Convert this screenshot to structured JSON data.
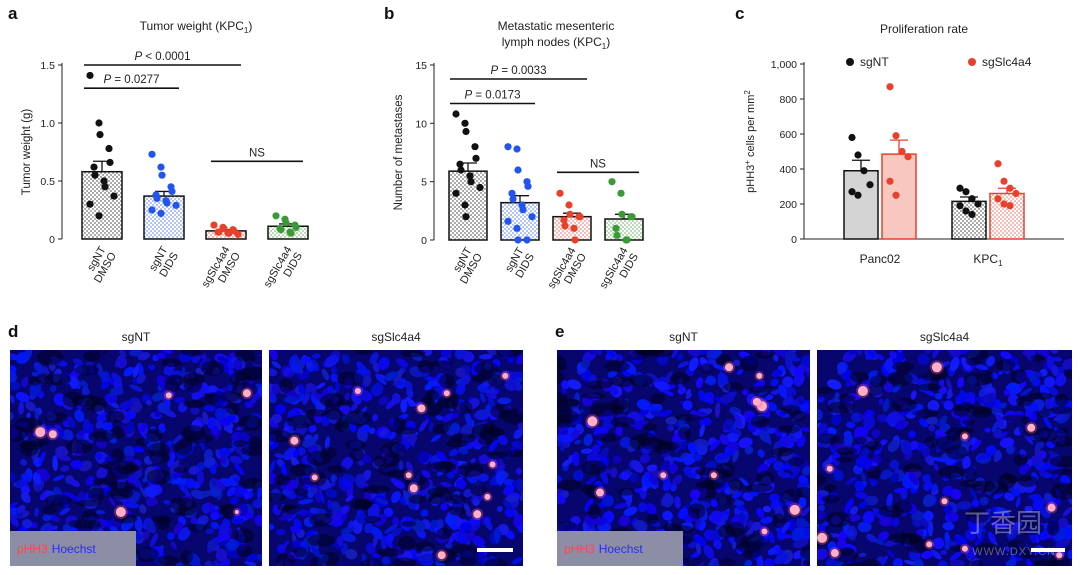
{
  "panels": {
    "a": "a",
    "b": "b",
    "c": "c",
    "d": "d",
    "e": "e"
  },
  "colors": {
    "black": "#111111",
    "blue": "#2255ee",
    "red": "#e8402a",
    "green": "#3a9a36",
    "gray": "#d4d4d4",
    "lightred": "#f8c8c0",
    "micro_bg": "#06066e",
    "pHH3": "#ff5a7a"
  },
  "chart_data": [
    {
      "id": "a",
      "type": "bar",
      "title_main": "Tumor weight (KPC",
      "title_sub": "1",
      "title_end": ")",
      "ylabel": "Tumor weight (g)",
      "ylim": [
        0,
        1.5
      ],
      "yticks": [
        0,
        0.5,
        1.0,
        1.5
      ],
      "ytick_labels": [
        "0",
        "0.5",
        "1.0",
        "1.5"
      ],
      "categories": [
        [
          "sgNT",
          "DMSO"
        ],
        [
          "sgNT",
          "DIDS"
        ],
        [
          "sgSlc4a4",
          "DMSO"
        ],
        [
          "sgSlc4a4",
          "DIDS"
        ]
      ],
      "bar_colors": [
        "#111111",
        "#2255ee",
        "#e8402a",
        "#3a9a36"
      ],
      "values": [
        0.58,
        0.37,
        0.07,
        0.11
      ],
      "errors": [
        0.09,
        0.04,
        0.01,
        0.02
      ],
      "points": [
        [
          1.41,
          1.0,
          0.9,
          0.78,
          0.66,
          0.62,
          0.55,
          0.5,
          0.45,
          0.37,
          0.3,
          0.2
        ],
        [
          0.73,
          0.62,
          0.55,
          0.45,
          0.41,
          0.38,
          0.35,
          0.33,
          0.31,
          0.29,
          0.25,
          0.22
        ],
        [
          0.12,
          0.1,
          0.09,
          0.08,
          0.07,
          0.06,
          0.06,
          0.05,
          0.05,
          0.04
        ],
        [
          0.2,
          0.17,
          0.14,
          0.12,
          0.1,
          0.09,
          0.08,
          0.06,
          0.05
        ]
      ],
      "brackets": [
        {
          "from": 0,
          "to": 2,
          "label_pre": "P",
          "label_post": " < 0.0001",
          "y": 1.5
        },
        {
          "from": 0,
          "to": 1,
          "label_pre": "P",
          "label_post": " = 0.0277",
          "y": 1.3
        },
        {
          "from": 2,
          "to": 3,
          "label_pre": "",
          "label_post": "NS",
          "y": 0.67
        }
      ]
    },
    {
      "id": "b",
      "type": "bar",
      "title_main": "Metastatic mesenteric",
      "title_line2": "lymph nodes (KPC",
      "title_sub": "1",
      "title_end": ")",
      "ylabel": "Number of metastases",
      "ylim": [
        0,
        15
      ],
      "yticks": [
        0,
        5,
        10,
        15
      ],
      "ytick_labels": [
        "0",
        "5",
        "10",
        "15"
      ],
      "categories": [
        [
          "sgNT",
          "DMSO"
        ],
        [
          "sgNT",
          "DIDS"
        ],
        [
          "sgSlc4a4",
          "DMSO"
        ],
        [
          "sgSlc4a4",
          "DIDS"
        ]
      ],
      "bar_colors": [
        "#111111",
        "#2255ee",
        "#e8402a",
        "#3a9a36"
      ],
      "values": [
        5.9,
        3.2,
        2.0,
        1.8
      ],
      "errors": [
        0.7,
        0.6,
        0.3,
        0.4
      ],
      "points": [
        [
          10.8,
          10.0,
          9.3,
          8.0,
          7.0,
          6.5,
          6.0,
          5.5,
          5.0,
          4.5,
          4.0,
          3.0,
          2.0
        ],
        [
          8.0,
          7.8,
          6.0,
          5.0,
          4.6,
          4.0,
          3.5,
          3.0,
          2.6,
          2.0,
          1.6,
          1.0,
          0.0,
          0.0
        ],
        [
          4.0,
          3.0,
          2.2,
          2.0,
          2.0,
          1.7,
          1.2,
          1.0,
          0.0
        ],
        [
          5.0,
          4.0,
          2.2,
          2.0,
          2.0,
          1.0,
          0.4,
          0.0,
          0.0
        ]
      ],
      "brackets": [
        {
          "from": 0,
          "to": 2,
          "label_pre": "P",
          "label_post": " = 0.0033",
          "y": 13.8
        },
        {
          "from": 0,
          "to": 1,
          "label_pre": "P",
          "label_post": " = 0.0173",
          "y": 11.7
        },
        {
          "from": 2,
          "to": 3,
          "label_pre": "",
          "label_post": "NS",
          "y": 5.8
        }
      ]
    },
    {
      "id": "c",
      "type": "bar",
      "title": "Proliferation rate",
      "ylabel_pre": "pHH3",
      "ylabel_sup": "+",
      "ylabel_mid": " cells per mm",
      "ylabel_sup2": "2",
      "ylim": [
        0,
        1000
      ],
      "yticks": [
        0,
        200,
        400,
        600,
        800,
        1000
      ],
      "ytick_labels": [
        "0",
        "200",
        "400",
        "600",
        "800",
        "1,000"
      ],
      "groups": [
        {
          "label": "Panc02",
          "sub": ""
        },
        {
          "label": "KPC",
          "sub": "1"
        }
      ],
      "series": [
        {
          "name": "sgNT",
          "color": "#111111",
          "fill": "#d4d4d4",
          "values": [
            390,
            215
          ],
          "errors": [
            60,
            25
          ],
          "points": [
            [
              580,
              480,
              390,
              310,
              270,
              250
            ],
            [
              290,
              270,
              230,
              200,
              190,
              160,
              140
            ]
          ]
        },
        {
          "name": "sgSlc4a4",
          "color": "#e8402a",
          "fill": "#f8c8c0",
          "values": [
            485,
            260
          ],
          "errors": [
            80,
            30
          ],
          "points": [
            [
              870,
              590,
              500,
              470,
              330,
              250
            ],
            [
              430,
              330,
              290,
              260,
              230,
              200,
              190
            ]
          ]
        }
      ]
    }
  ],
  "micrographs": {
    "d": {
      "left_label": "sgNT",
      "right_label": "sgSlc4a4"
    },
    "e": {
      "left_label": "sgNT",
      "right_label": "sgSlc4a4"
    },
    "legend_red": "pHH3",
    "legend_blue": "Hoechst"
  },
  "watermark": {
    "text": "WWW.DXY.CN",
    "logo": "丁香园"
  }
}
